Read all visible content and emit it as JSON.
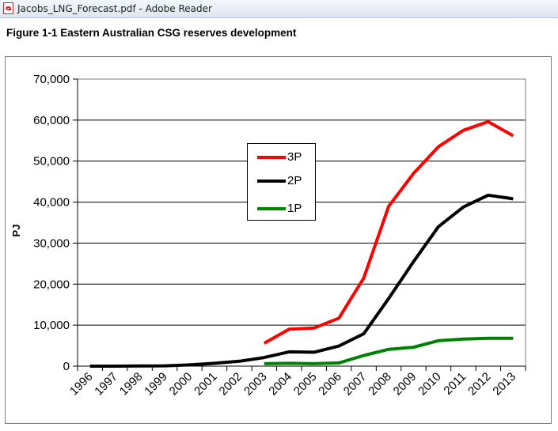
{
  "window": {
    "title": "Jacobs_LNG_Forecast.pdf - Adobe Reader",
    "icon": "pdf-icon"
  },
  "figure": {
    "title": "Figure 1-1 Eastern Australian CSG reserves development"
  },
  "chart_data": {
    "type": "line",
    "title": "",
    "xlabel": "",
    "ylabel": "PJ",
    "ylim": [
      0,
      70000
    ],
    "yticks": [
      0,
      10000,
      20000,
      30000,
      40000,
      50000,
      60000,
      70000
    ],
    "ytick_labels": [
      "0",
      "10,000",
      "20,000",
      "30,000",
      "40,000",
      "50,000",
      "60,000",
      "70,000"
    ],
    "grid": "horizontal",
    "legend_position": "center-left, upper half of plot",
    "categories": [
      "1996",
      "1997",
      "1998",
      "1999",
      "2000",
      "2001",
      "2002",
      "2003",
      "2004",
      "2005",
      "2006",
      "2007",
      "2008",
      "2009",
      "2010",
      "2011",
      "2012",
      "2013"
    ],
    "series": [
      {
        "name": "3P",
        "color": "#ff0000",
        "values": [
          null,
          null,
          null,
          null,
          null,
          null,
          null,
          5600,
          9000,
          9300,
          11700,
          21500,
          39000,
          47000,
          53500,
          57500,
          59600,
          56200
        ]
      },
      {
        "name": "2P",
        "color": "#000000",
        "values": [
          0,
          0,
          50,
          80,
          300,
          700,
          1200,
          2100,
          3500,
          3400,
          4900,
          7900,
          16500,
          25500,
          34000,
          38800,
          41700,
          40800
        ]
      },
      {
        "name": "1P",
        "color": "#008000",
        "values": [
          null,
          null,
          null,
          null,
          null,
          null,
          null,
          600,
          700,
          600,
          800,
          2600,
          4100,
          4600,
          6200,
          6600,
          6800,
          6800
        ]
      }
    ]
  }
}
